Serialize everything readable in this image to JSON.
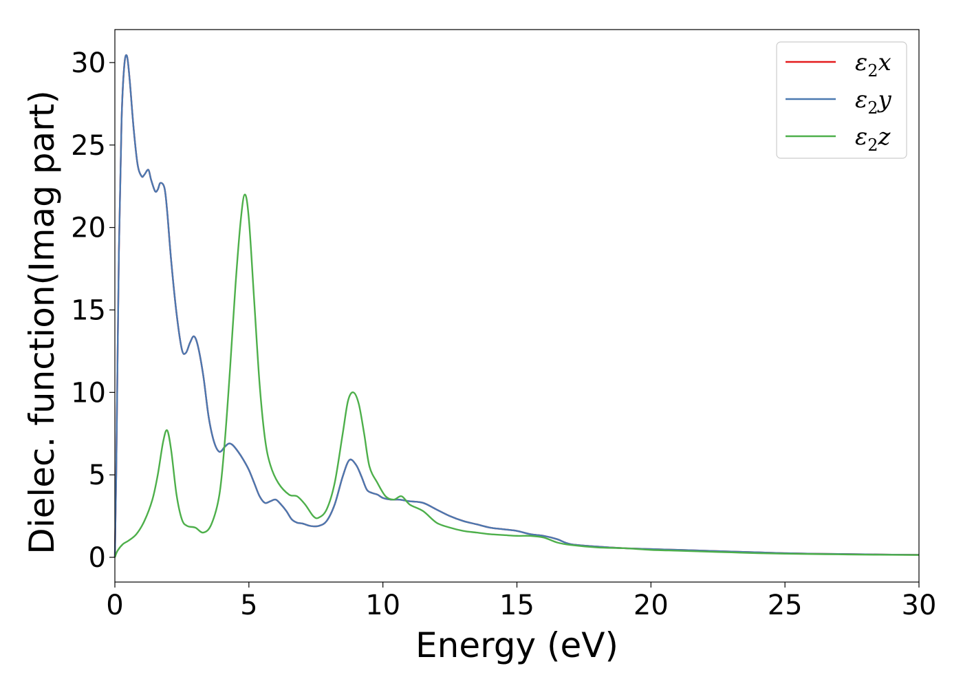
{
  "chart_data": {
    "type": "line",
    "xlabel": "Energy (eV)",
    "ylabel": "Dielec. function(Imag part)",
    "xlim": [
      0,
      30
    ],
    "ylim": [
      -1.5,
      32
    ],
    "xticks": [
      "0",
      "5",
      "10",
      "15",
      "20",
      "25",
      "30"
    ],
    "yticks": [
      "0",
      "5",
      "10",
      "15",
      "20",
      "25",
      "30"
    ],
    "grid": false,
    "legend_position": "top-right",
    "series": [
      {
        "name": "ε2x",
        "label_base": "ε",
        "label_sub": "2",
        "label_suffix": "x",
        "color": "#e41a1c",
        "x": [
          0,
          0.05,
          0.15,
          0.25,
          0.35,
          0.45,
          0.55,
          0.7,
          0.85,
          1.0,
          1.1,
          1.25,
          1.35,
          1.5,
          1.6,
          1.7,
          1.85,
          1.95,
          2.1,
          2.3,
          2.5,
          2.65,
          2.8,
          2.95,
          3.1,
          3.3,
          3.5,
          3.7,
          3.9,
          4.1,
          4.25,
          4.4,
          4.6,
          4.8,
          5.0,
          5.2,
          5.4,
          5.6,
          5.8,
          6.0,
          6.2,
          6.4,
          6.6,
          6.8,
          7.0,
          7.3,
          7.6,
          7.9,
          8.2,
          8.5,
          8.75,
          9.0,
          9.2,
          9.4,
          9.6,
          9.8,
          10.0,
          10.3,
          10.6,
          11.0,
          11.5,
          12.0,
          12.5,
          13.0,
          13.5,
          14.0,
          14.5,
          15.0,
          15.5,
          16.0,
          16.5,
          17.0,
          18.0,
          19.0,
          20.0,
          21.0,
          22.0,
          23.0,
          24.0,
          25.0,
          26.0,
          27.0,
          28.0,
          29.0,
          30.0
        ],
        "y": [
          0.0,
          5.0,
          18.5,
          26.5,
          29.8,
          30.4,
          29.0,
          26.0,
          23.8,
          23.1,
          23.2,
          23.5,
          22.9,
          22.2,
          22.3,
          22.7,
          22.4,
          21.0,
          18.0,
          14.8,
          12.6,
          12.4,
          13.0,
          13.4,
          12.8,
          11.0,
          8.5,
          7.0,
          6.4,
          6.7,
          6.9,
          6.8,
          6.4,
          5.9,
          5.3,
          4.5,
          3.7,
          3.3,
          3.4,
          3.5,
          3.2,
          2.8,
          2.3,
          2.1,
          2.05,
          1.9,
          1.9,
          2.2,
          3.2,
          4.9,
          5.9,
          5.6,
          4.9,
          4.1,
          3.9,
          3.8,
          3.6,
          3.5,
          3.5,
          3.4,
          3.3,
          2.9,
          2.5,
          2.2,
          2.0,
          1.8,
          1.7,
          1.6,
          1.4,
          1.3,
          1.1,
          0.8,
          0.65,
          0.55,
          0.5,
          0.45,
          0.4,
          0.35,
          0.3,
          0.25,
          0.22,
          0.2,
          0.18,
          0.16,
          0.15
        ]
      },
      {
        "name": "ε2y",
        "label_base": "ε",
        "label_sub": "2",
        "label_suffix": "y",
        "color": "#4a78b0",
        "x": [
          0,
          0.05,
          0.15,
          0.25,
          0.35,
          0.45,
          0.55,
          0.7,
          0.85,
          1.0,
          1.1,
          1.25,
          1.35,
          1.5,
          1.6,
          1.7,
          1.85,
          1.95,
          2.1,
          2.3,
          2.5,
          2.65,
          2.8,
          2.95,
          3.1,
          3.3,
          3.5,
          3.7,
          3.9,
          4.1,
          4.25,
          4.4,
          4.6,
          4.8,
          5.0,
          5.2,
          5.4,
          5.6,
          5.8,
          6.0,
          6.2,
          6.4,
          6.6,
          6.8,
          7.0,
          7.3,
          7.6,
          7.9,
          8.2,
          8.5,
          8.75,
          9.0,
          9.2,
          9.4,
          9.6,
          9.8,
          10.0,
          10.3,
          10.6,
          11.0,
          11.5,
          12.0,
          12.5,
          13.0,
          13.5,
          14.0,
          14.5,
          15.0,
          15.5,
          16.0,
          16.5,
          17.0,
          18.0,
          19.0,
          20.0,
          21.0,
          22.0,
          23.0,
          24.0,
          25.0,
          26.0,
          27.0,
          28.0,
          29.0,
          30.0
        ],
        "y": [
          0.0,
          5.0,
          18.5,
          26.5,
          29.8,
          30.4,
          29.0,
          26.0,
          23.8,
          23.1,
          23.2,
          23.5,
          22.9,
          22.2,
          22.3,
          22.7,
          22.4,
          21.0,
          18.0,
          14.8,
          12.6,
          12.4,
          13.0,
          13.4,
          12.8,
          11.0,
          8.5,
          7.0,
          6.4,
          6.7,
          6.9,
          6.8,
          6.4,
          5.9,
          5.3,
          4.5,
          3.7,
          3.3,
          3.4,
          3.5,
          3.2,
          2.8,
          2.3,
          2.1,
          2.05,
          1.9,
          1.9,
          2.2,
          3.2,
          4.9,
          5.9,
          5.6,
          4.9,
          4.1,
          3.9,
          3.8,
          3.6,
          3.5,
          3.5,
          3.4,
          3.3,
          2.9,
          2.5,
          2.2,
          2.0,
          1.8,
          1.7,
          1.6,
          1.4,
          1.3,
          1.1,
          0.8,
          0.65,
          0.55,
          0.5,
          0.45,
          0.4,
          0.35,
          0.3,
          0.25,
          0.22,
          0.2,
          0.18,
          0.16,
          0.15
        ]
      },
      {
        "name": "ε2z",
        "label_base": "ε",
        "label_sub": "2",
        "label_suffix": "z",
        "color": "#4daf4a",
        "x": [
          0,
          0.1,
          0.3,
          0.5,
          0.8,
          1.1,
          1.4,
          1.6,
          1.8,
          1.95,
          2.1,
          2.3,
          2.5,
          2.7,
          3.0,
          3.3,
          3.6,
          3.9,
          4.1,
          4.3,
          4.5,
          4.7,
          4.85,
          5.0,
          5.2,
          5.4,
          5.6,
          5.8,
          6.1,
          6.5,
          6.8,
          7.1,
          7.4,
          7.6,
          7.9,
          8.2,
          8.5,
          8.7,
          8.9,
          9.1,
          9.3,
          9.5,
          9.8,
          10.1,
          10.4,
          10.7,
          11.0,
          11.5,
          12.0,
          12.5,
          13.0,
          13.5,
          14.0,
          14.5,
          15.0,
          15.5,
          16.0,
          16.5,
          17.0,
          18.0,
          19.0,
          20.0,
          21.0,
          22.0,
          23.0,
          24.0,
          25.0,
          26.0,
          27.0,
          28.0,
          29.0,
          30.0
        ],
        "y": [
          0.0,
          0.4,
          0.8,
          1.0,
          1.4,
          2.2,
          3.5,
          5.0,
          7.0,
          7.7,
          6.5,
          3.8,
          2.3,
          1.9,
          1.8,
          1.5,
          2.0,
          3.8,
          7.0,
          11.5,
          16.5,
          20.5,
          22.0,
          20.5,
          15.5,
          10.5,
          7.2,
          5.6,
          4.5,
          3.8,
          3.7,
          3.2,
          2.5,
          2.4,
          2.9,
          4.5,
          7.5,
          9.5,
          10.0,
          9.3,
          7.5,
          5.5,
          4.5,
          3.7,
          3.5,
          3.7,
          3.2,
          2.8,
          2.1,
          1.8,
          1.6,
          1.5,
          1.4,
          1.35,
          1.3,
          1.3,
          1.2,
          0.9,
          0.75,
          0.6,
          0.55,
          0.45,
          0.4,
          0.35,
          0.3,
          0.25,
          0.22,
          0.2,
          0.18,
          0.16,
          0.15,
          0.14
        ]
      }
    ]
  }
}
